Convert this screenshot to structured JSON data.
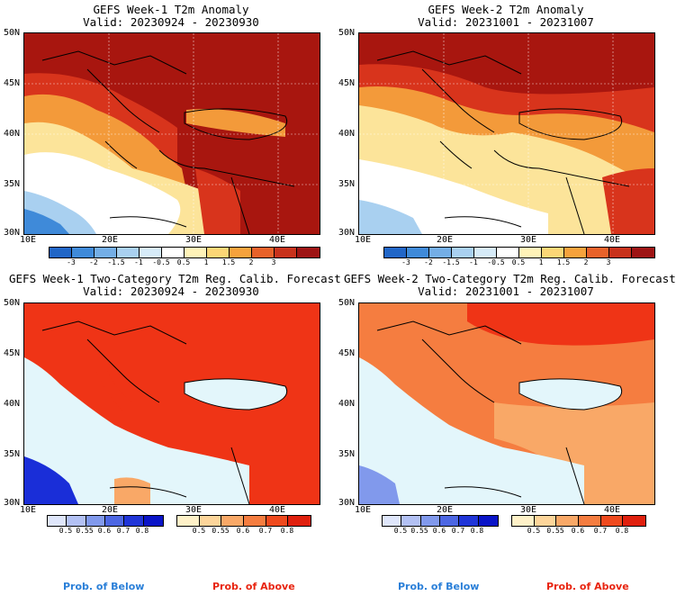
{
  "panels": [
    {
      "title": "GEFS Week-1 T2m Anomaly",
      "valid": "Valid: 20230924 - 20230930"
    },
    {
      "title": "GEFS Week-2 T2m Anomaly",
      "valid": "Valid: 20231001 - 20231007"
    },
    {
      "title": "GEFS Week-1 Two-Category T2m Reg. Calib. Forecast",
      "valid": "Valid: 20230924 - 20230930"
    },
    {
      "title": "GEFS Week-2 Two-Category T2m Reg. Calib. Forecast",
      "valid": "Valid: 20231001 - 20231007"
    }
  ],
  "lat_labels": [
    "50N",
    "45N",
    "40N",
    "35N",
    "30N"
  ],
  "lon_labels": [
    "10E",
    "20E",
    "30E",
    "40E"
  ],
  "anomaly_colorbar": {
    "labels": [
      "-3",
      "-2",
      "-1.5",
      "-1",
      "-0.5",
      "0.5",
      "1",
      "1.5",
      "2",
      "3"
    ],
    "colors": [
      "#2166c7",
      "#3f8ad9",
      "#74aee6",
      "#a9d0f0",
      "#d6ebf8",
      "#ffffff",
      "#fff3b8",
      "#fbd676",
      "#f6a23c",
      "#e8622a",
      "#c8321c",
      "#9e1414"
    ]
  },
  "below_colorbar": {
    "labels": [
      "0.5",
      "0.55",
      "0.6",
      "0.7",
      "0.8"
    ],
    "colors": [
      "#dfe6fb",
      "#b3c1f4",
      "#8199ec",
      "#4d67e3",
      "#2035d8",
      "#0a14c8"
    ]
  },
  "above_colorbar": {
    "labels": [
      "0.5",
      "0.55",
      "0.6",
      "0.7",
      "0.8"
    ],
    "colors": [
      "#fff1c8",
      "#fdd59a",
      "#f9a867",
      "#f57d40",
      "#ef4a1e",
      "#e0200e"
    ]
  },
  "prob_labels": {
    "below": "Prob. of Below",
    "above": "Prob. of Above",
    "below_color": "#2a7fd8",
    "above_color": "#e8240f"
  },
  "palette": {
    "sea_cold": "#e3f6fb",
    "warm_dark": "#a8160f",
    "warm_mid": "#d8341c",
    "warm_orange": "#f39a3a",
    "warm_yellow": "#fce49a",
    "neutral": "#ffffff",
    "cool_light": "#a9d0f0",
    "cool_mid": "#3f8ad9",
    "above_strong": "#ef3416",
    "above_mid": "#f57d40",
    "above_light": "#f9a867",
    "below_strong": "#1a2ed8"
  }
}
